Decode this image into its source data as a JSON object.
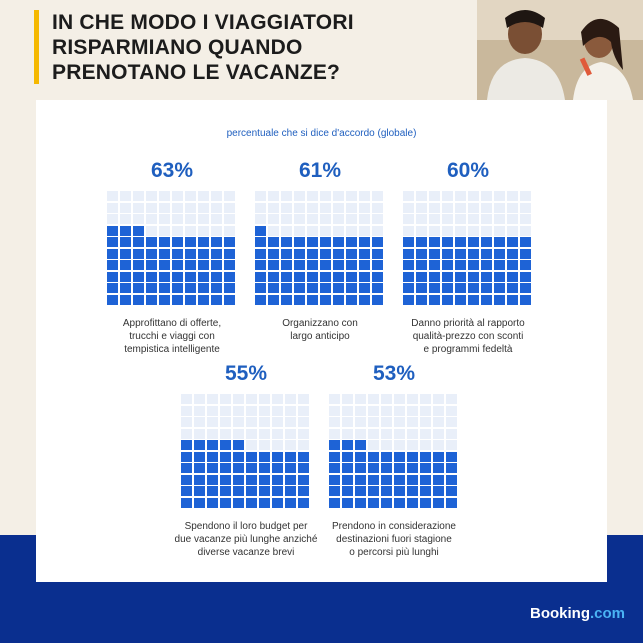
{
  "title": "IN CHE MODO I VIAGGIATORI\nRISPARMIANO QUANDO\nPRENOTANO LE VACANZE?",
  "subtitle": "percentuale che si dice d'accordo (globale)",
  "logo": {
    "text": "Booking",
    "suffix": ".com"
  },
  "colors": {
    "filled": "#1e63d6",
    "empty": "#e9eff9",
    "accent": "#f5b800",
    "band": "#0a2f8f"
  },
  "chart_data": {
    "type": "waffle",
    "cells_per_chart": 100,
    "items": [
      {
        "value": 63,
        "value_label": "63%",
        "label": "Approfittano di offerte,\ntrucchi e viaggi con\ntempistica intelligente"
      },
      {
        "value": 61,
        "value_label": "61%",
        "label": "Organizzano con\nlargo anticipo"
      },
      {
        "value": 60,
        "value_label": "60%",
        "label": "Danno priorità al rapporto\nqualità-prezzo con sconti\ne programmi fedeltà"
      },
      {
        "value": 55,
        "value_label": "55%",
        "label": "Spendono il loro budget per\ndue vacanze più lunghe anziché\ndiverse vacanze brevi"
      },
      {
        "value": 53,
        "value_label": "53%",
        "label": "Prendono in considerazione\ndestinazioni fuori stagione\no percorsi più lunghi"
      }
    ]
  }
}
